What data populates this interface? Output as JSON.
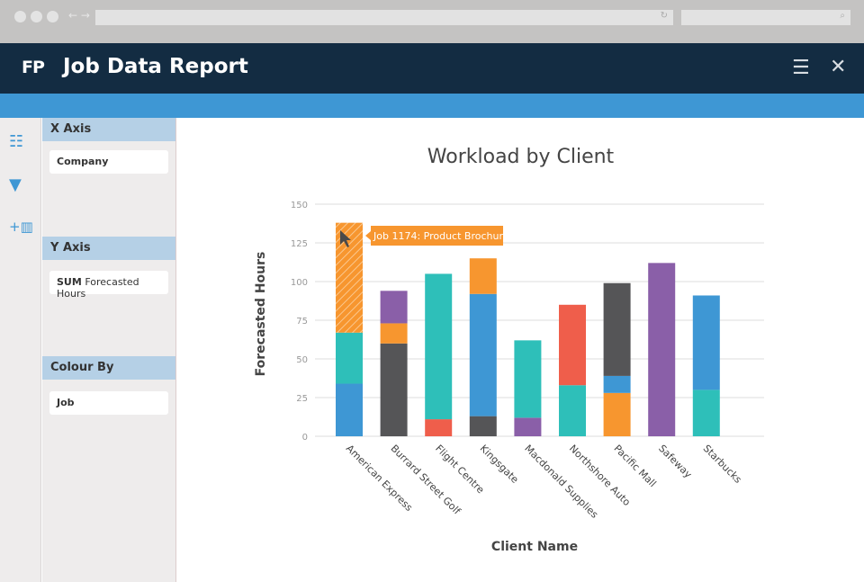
{
  "header": {
    "logo": "FP",
    "title": "Job Data Report"
  },
  "panel": {
    "x_axis": {
      "label": "X Axis",
      "value": "Company"
    },
    "y_axis": {
      "label": "Y Axis",
      "agg": "SUM",
      "value": "Forecasted Hours"
    },
    "colour_by": {
      "label": "Colour By",
      "value": "Job"
    }
  },
  "tooltip": "Job 1174: Product Brochure",
  "chart_data": {
    "type": "bar",
    "stacked": true,
    "title": "Workload by Client",
    "xlabel": "Client Name",
    "ylabel": "Forecasted Hours",
    "ylim": [
      0,
      150
    ],
    "yticks": [
      0,
      25,
      50,
      75,
      100,
      125,
      150
    ],
    "categories": [
      "American Express",
      "Burrard Street Golf",
      "Flight Centre",
      "Kingsgate",
      "Macdonald Supplies",
      "Northshore Auto",
      "Pacific Mall",
      "Safeway",
      "Starbucks"
    ],
    "series": [
      {
        "name": "blue",
        "color": "#3e97d4",
        "values": [
          34,
          0,
          0,
          79,
          0,
          0,
          11,
          0,
          61
        ]
      },
      {
        "name": "teal",
        "color": "#2ebfb9",
        "values": [
          33,
          0,
          94,
          0,
          50,
          33,
          0,
          0,
          30
        ]
      },
      {
        "name": "orange",
        "color": "#f7962f",
        "values": [
          71,
          13,
          0,
          23,
          0,
          0,
          28,
          0,
          0
        ]
      },
      {
        "name": "dark",
        "color": "#555557",
        "values": [
          0,
          60,
          0,
          13,
          0,
          0,
          60,
          0,
          0
        ]
      },
      {
        "name": "purple",
        "color": "#8a5fa8",
        "values": [
          0,
          21,
          0,
          0,
          12,
          0,
          0,
          112,
          0
        ]
      },
      {
        "name": "red",
        "color": "#ef5e4b",
        "values": [
          0,
          0,
          11,
          0,
          0,
          52,
          0,
          0,
          0
        ]
      }
    ],
    "stack_order": [
      [
        "blue",
        "teal",
        "orange"
      ],
      [
        "dark",
        "orange",
        "purple"
      ],
      [
        "red",
        "teal"
      ],
      [
        "dark",
        "blue",
        "orange"
      ],
      [
        "purple",
        "teal"
      ],
      [
        "teal",
        "red"
      ],
      [
        "orange",
        "blue",
        "dark"
      ],
      [
        "purple"
      ],
      [
        "teal",
        "blue"
      ]
    ]
  }
}
